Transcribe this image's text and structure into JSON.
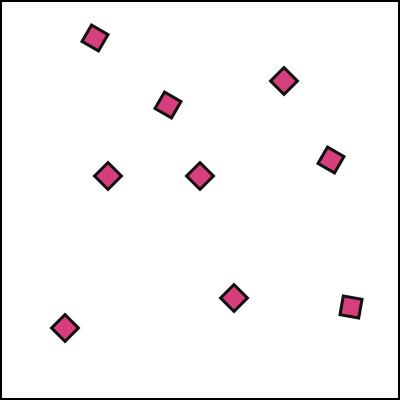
{
  "board": {
    "background": "#ffffff",
    "border_color": "#000000"
  },
  "shape_style": {
    "fill": "#d63f7b",
    "stroke": "#111111"
  },
  "shapes": [
    {
      "name": "diamond"
    },
    {
      "name": "diamond"
    },
    {
      "name": "diamond"
    },
    {
      "name": "diamond"
    },
    {
      "name": "diamond"
    },
    {
      "name": "diamond"
    },
    {
      "name": "diamond"
    },
    {
      "name": "diamond"
    },
    {
      "name": "diamond"
    }
  ]
}
